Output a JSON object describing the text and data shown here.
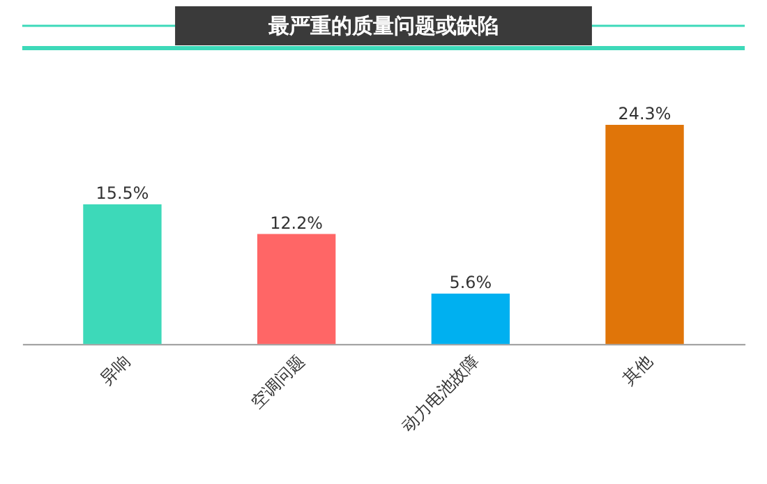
{
  "chart_data": {
    "type": "bar",
    "title": "最严重的质量问题或缺陷",
    "categories": [
      "异响",
      "空调问题",
      "动力电池故障",
      "其他"
    ],
    "values": [
      15.5,
      12.2,
      5.6,
      24.3
    ],
    "colors": [
      "#3dd9b9",
      "#ff6666",
      "#00b0f0",
      "#e07509"
    ],
    "value_labels": [
      "15.5%",
      "12.2%",
      "5.6%",
      "24.3%"
    ]
  }
}
